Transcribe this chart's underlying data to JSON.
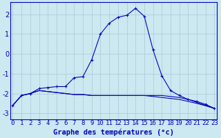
{
  "xlabel": "Graphe des températures (°c)",
  "hours": [
    0,
    1,
    2,
    3,
    4,
    5,
    6,
    7,
    8,
    9,
    10,
    11,
    12,
    13,
    14,
    15,
    16,
    17,
    18,
    19,
    20,
    21,
    22,
    23
  ],
  "line_main": [
    -2.6,
    -2.1,
    -2.0,
    -1.75,
    -1.7,
    -1.65,
    -1.65,
    -1.2,
    -1.15,
    -0.3,
    1.0,
    1.55,
    1.85,
    1.95,
    2.3,
    1.9,
    0.2,
    -1.1,
    -1.85,
    -2.1,
    -2.3,
    -2.4,
    -2.55,
    -2.75
  ],
  "line_flat1": [
    -2.6,
    -2.1,
    -2.0,
    -1.85,
    -1.9,
    -1.95,
    -2.0,
    -2.05,
    -2.05,
    -2.1,
    -2.1,
    -2.1,
    -2.1,
    -2.1,
    -2.1,
    -2.1,
    -2.1,
    -2.1,
    -2.15,
    -2.2,
    -2.3,
    -2.45,
    -2.6,
    -2.75
  ],
  "line_flat2": [
    -2.6,
    -2.1,
    -2.0,
    -1.85,
    -1.9,
    -1.95,
    -2.0,
    -2.05,
    -2.05,
    -2.1,
    -2.1,
    -2.1,
    -2.1,
    -2.1,
    -2.1,
    -2.1,
    -2.15,
    -2.2,
    -2.25,
    -2.3,
    -2.4,
    -2.5,
    -2.62,
    -2.75
  ],
  "bg_color": "#cce8f0",
  "line_color": "#0000bb",
  "grid_color": "#aac8d8",
  "ylim": [
    -3.3,
    2.6
  ],
  "yticks": [
    -3,
    -2,
    -1,
    0,
    1,
    2
  ],
  "tick_fontsize": 6.5,
  "label_fontsize": 7.5
}
